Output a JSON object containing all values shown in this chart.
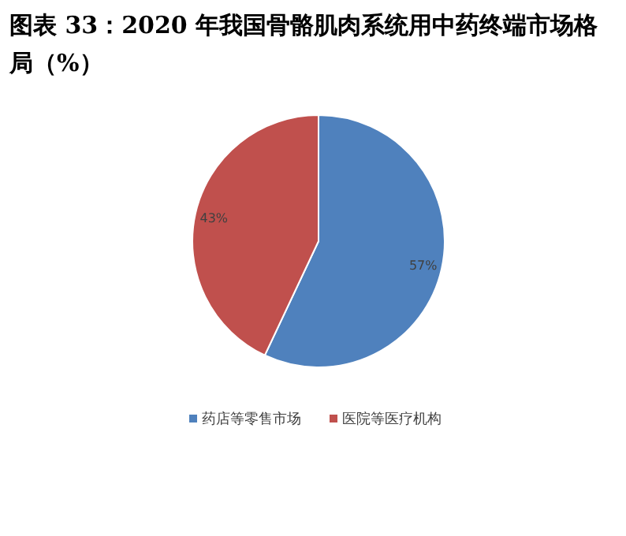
{
  "chart_data": {
    "type": "pie",
    "title": "图表 33：2020 年我国骨骼肌肉系统用中药终端市场格局（%）",
    "categories": [
      "药店等零售市场",
      "医院等医疗机构"
    ],
    "values": [
      57,
      43
    ],
    "colors": [
      "#4f81bd",
      "#c0504d"
    ],
    "value_labels": [
      "57%",
      "43%"
    ],
    "legend": "bottom"
  }
}
